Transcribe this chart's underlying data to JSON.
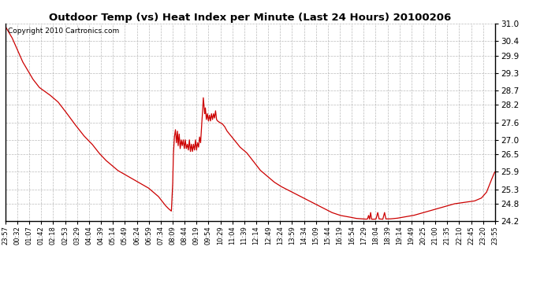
{
  "title": "Outdoor Temp (vs) Heat Index per Minute (Last 24 Hours) 20100206",
  "copyright": "Copyright 2010 Cartronics.com",
  "line_color": "#cc0000",
  "background_color": "#ffffff",
  "grid_color": "#aaaaaa",
  "ylim": [
    24.2,
    31.0
  ],
  "yticks": [
    24.2,
    24.8,
    25.3,
    25.9,
    26.5,
    27.0,
    27.6,
    28.2,
    28.7,
    29.3,
    29.9,
    30.4,
    31.0
  ],
  "xtick_labels": [
    "23:57",
    "00:32",
    "01:07",
    "01:42",
    "02:18",
    "02:53",
    "03:29",
    "04:04",
    "04:39",
    "05:14",
    "05:49",
    "06:24",
    "06:59",
    "07:34",
    "08:09",
    "08:44",
    "09:19",
    "09:54",
    "10:29",
    "11:04",
    "11:39",
    "12:14",
    "12:49",
    "13:24",
    "13:59",
    "14:34",
    "15:09",
    "15:44",
    "16:19",
    "16:54",
    "17:29",
    "18:04",
    "18:39",
    "19:14",
    "19:49",
    "20:25",
    "21:00",
    "21:35",
    "22:10",
    "22:45",
    "23:20",
    "23:55"
  ],
  "keypoints": [
    [
      0,
      30.9
    ],
    [
      20,
      30.5
    ],
    [
      50,
      29.7
    ],
    [
      80,
      29.1
    ],
    [
      100,
      28.8
    ],
    [
      130,
      28.55
    ],
    [
      155,
      28.3
    ],
    [
      175,
      28.0
    ],
    [
      200,
      27.6
    ],
    [
      230,
      27.15
    ],
    [
      255,
      26.85
    ],
    [
      275,
      26.55
    ],
    [
      295,
      26.3
    ],
    [
      310,
      26.15
    ],
    [
      330,
      25.95
    ],
    [
      345,
      25.85
    ],
    [
      360,
      25.75
    ],
    [
      375,
      25.65
    ],
    [
      390,
      25.55
    ],
    [
      405,
      25.45
    ],
    [
      420,
      25.35
    ],
    [
      435,
      25.2
    ],
    [
      450,
      25.05
    ],
    [
      460,
      24.9
    ],
    [
      470,
      24.75
    ],
    [
      478,
      24.65
    ],
    [
      483,
      24.6
    ],
    [
      488,
      24.55
    ],
    [
      492,
      25.5
    ],
    [
      494,
      26.5
    ],
    [
      497,
      27.1
    ],
    [
      500,
      27.35
    ],
    [
      503,
      26.9
    ],
    [
      506,
      27.3
    ],
    [
      508,
      26.8
    ],
    [
      511,
      27.2
    ],
    [
      514,
      26.7
    ],
    [
      517,
      27.0
    ],
    [
      520,
      26.8
    ],
    [
      523,
      27.0
    ],
    [
      526,
      26.7
    ],
    [
      529,
      27.0
    ],
    [
      532,
      26.7
    ],
    [
      535,
      26.85
    ],
    [
      538,
      26.65
    ],
    [
      541,
      27.0
    ],
    [
      544,
      26.6
    ],
    [
      547,
      26.85
    ],
    [
      550,
      26.6
    ],
    [
      553,
      26.85
    ],
    [
      556,
      26.65
    ],
    [
      559,
      27.0
    ],
    [
      562,
      26.65
    ],
    [
      565,
      26.9
    ],
    [
      568,
      26.75
    ],
    [
      571,
      27.1
    ],
    [
      574,
      26.9
    ],
    [
      577,
      27.5
    ],
    [
      580,
      28.0
    ],
    [
      582,
      28.45
    ],
    [
      584,
      28.2
    ],
    [
      586,
      27.9
    ],
    [
      588,
      28.1
    ],
    [
      591,
      27.7
    ],
    [
      594,
      27.9
    ],
    [
      597,
      27.65
    ],
    [
      600,
      27.85
    ],
    [
      603,
      27.65
    ],
    [
      606,
      27.9
    ],
    [
      609,
      27.7
    ],
    [
      612,
      27.9
    ],
    [
      615,
      27.75
    ],
    [
      618,
      28.0
    ],
    [
      621,
      27.7
    ],
    [
      624,
      27.65
    ],
    [
      630,
      27.6
    ],
    [
      638,
      27.55
    ],
    [
      645,
      27.45
    ],
    [
      652,
      27.3
    ],
    [
      659,
      27.2
    ],
    [
      666,
      27.1
    ],
    [
      673,
      27.0
    ],
    [
      680,
      26.9
    ],
    [
      690,
      26.75
    ],
    [
      700,
      26.65
    ],
    [
      710,
      26.55
    ],
    [
      720,
      26.4
    ],
    [
      730,
      26.25
    ],
    [
      740,
      26.1
    ],
    [
      750,
      25.95
    ],
    [
      760,
      25.85
    ],
    [
      775,
      25.7
    ],
    [
      790,
      25.55
    ],
    [
      810,
      25.4
    ],
    [
      835,
      25.25
    ],
    [
      860,
      25.1
    ],
    [
      885,
      24.95
    ],
    [
      910,
      24.8
    ],
    [
      935,
      24.65
    ],
    [
      960,
      24.5
    ],
    [
      985,
      24.4
    ],
    [
      1010,
      24.35
    ],
    [
      1030,
      24.3
    ],
    [
      1050,
      24.28
    ],
    [
      1060,
      24.27
    ],
    [
      1065,
      24.28
    ],
    [
      1068,
      24.4
    ],
    [
      1071,
      24.27
    ],
    [
      1074,
      24.5
    ],
    [
      1077,
      24.27
    ],
    [
      1085,
      24.27
    ],
    [
      1090,
      24.28
    ],
    [
      1095,
      24.5
    ],
    [
      1099,
      24.28
    ],
    [
      1110,
      24.27
    ],
    [
      1115,
      24.5
    ],
    [
      1119,
      24.28
    ],
    [
      1130,
      24.28
    ],
    [
      1150,
      24.3
    ],
    [
      1175,
      24.35
    ],
    [
      1200,
      24.4
    ],
    [
      1230,
      24.5
    ],
    [
      1260,
      24.6
    ],
    [
      1290,
      24.7
    ],
    [
      1320,
      24.8
    ],
    [
      1350,
      24.85
    ],
    [
      1380,
      24.9
    ],
    [
      1400,
      25.0
    ],
    [
      1415,
      25.2
    ],
    [
      1425,
      25.5
    ],
    [
      1432,
      25.7
    ],
    [
      1437,
      25.85
    ],
    [
      1440,
      25.9
    ]
  ]
}
